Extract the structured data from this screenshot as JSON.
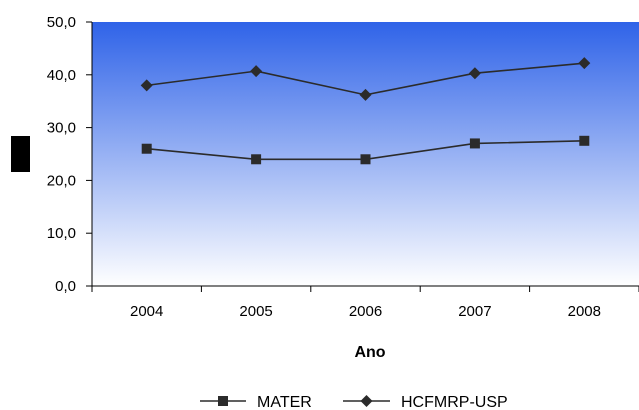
{
  "chart_data": {
    "type": "line",
    "title": "",
    "xlabel": "Ano",
    "ylabel": "",
    "categories": [
      "2004",
      "2005",
      "2006",
      "2007",
      "2008"
    ],
    "y_ticks": [
      "0,0",
      "10,0",
      "20,0",
      "30,0",
      "40,0",
      "50,0"
    ],
    "ylim": [
      0,
      50
    ],
    "grid": false,
    "legend_position": "bottom",
    "series": [
      {
        "name": "MATER",
        "marker": "square",
        "color": "#2b2b2b",
        "values": [
          26.0,
          24.0,
          24.0,
          27.0,
          27.5
        ]
      },
      {
        "name": "HCFMRP-USP",
        "marker": "diamond",
        "color": "#2b2b2b",
        "values": [
          38.0,
          40.7,
          36.2,
          40.3,
          42.2
        ]
      }
    ],
    "background_gradient": [
      "#2f63e8",
      "#ffffff"
    ]
  }
}
